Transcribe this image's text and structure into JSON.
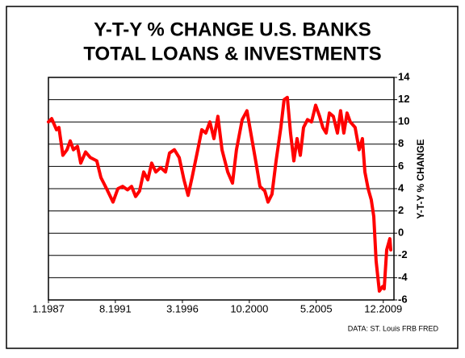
{
  "chart_data": {
    "type": "line",
    "title": [
      "Y-T-Y % CHANGE U.S. BANKS",
      "TOTAL LOANS & INVESTMENTS"
    ],
    "y_label": "Y-T-Y % CHANGE",
    "source": "DATA: ST. Louis FRB FRED",
    "xlim": [
      1987,
      2010.65
    ],
    "xticks": [
      {
        "value": 1987.0,
        "label": "1.1987"
      },
      {
        "value": 1991.58,
        "label": "8.1991"
      },
      {
        "value": 1996.17,
        "label": "3.1996"
      },
      {
        "value": 2000.75,
        "label": "10.2000"
      },
      {
        "value": 2005.33,
        "label": "5.2005"
      },
      {
        "value": 2009.92,
        "label": "12.2009"
      }
    ],
    "ylim": [
      -6,
      14
    ],
    "yticks": [
      -6,
      -4,
      -2,
      0,
      2,
      4,
      6,
      8,
      10,
      12,
      14
    ],
    "grid": true,
    "series": [
      {
        "color": "#ff0000",
        "x": [
          1987.0,
          1987.22,
          1987.55,
          1987.72,
          1987.99,
          1988.27,
          1988.49,
          1988.71,
          1988.99,
          1989.21,
          1989.54,
          1989.87,
          1990.31,
          1990.59,
          1990.98,
          1991.42,
          1991.75,
          1992.08,
          1992.41,
          1992.69,
          1992.97,
          1993.24,
          1993.52,
          1993.8,
          1994.07,
          1994.35,
          1994.68,
          1995.01,
          1995.29,
          1995.62,
          1995.95,
          1996.28,
          1996.56,
          1996.83,
          1997.22,
          1997.5,
          1997.77,
          1998.05,
          1998.33,
          1998.6,
          1998.88,
          1999.27,
          1999.6,
          1999.87,
          2000.26,
          2000.59,
          2000.92,
          2001.25,
          2001.48,
          2001.81,
          2002.03,
          2002.3,
          2002.58,
          2002.91,
          2003.13,
          2003.35,
          2003.57,
          2003.8,
          2004.02,
          2004.24,
          2004.46,
          2004.73,
          2005.01,
          2005.29,
          2005.56,
          2005.78,
          2006.01,
          2006.23,
          2006.5,
          2006.78,
          2007.0,
          2007.22,
          2007.44,
          2007.66,
          2007.99,
          2008.27,
          2008.49,
          2008.66,
          2008.88,
          2009.1,
          2009.27,
          2009.43,
          2009.65,
          2009.87,
          2009.98,
          2010.15,
          2010.37,
          2010.43
        ],
        "values": [
          10,
          10.3,
          9.3,
          9.5,
          7.0,
          7.5,
          8.3,
          7.5,
          7.8,
          6.3,
          7.3,
          6.8,
          6.5,
          5.0,
          4.0,
          2.8,
          4.0,
          4.2,
          3.9,
          4.2,
          3.3,
          3.8,
          5.5,
          4.8,
          6.3,
          5.5,
          5.9,
          5.5,
          7.2,
          7.5,
          6.8,
          4.8,
          3.4,
          5.0,
          7.5,
          9.3,
          9.0,
          10.0,
          8.5,
          10.5,
          7.5,
          5.5,
          4.5,
          7.5,
          10.2,
          11.0,
          8.5,
          6.0,
          4.2,
          3.8,
          2.8,
          3.5,
          6.5,
          9.5,
          12.0,
          12.2,
          9.0,
          6.5,
          8.5,
          7.0,
          9.5,
          10.2,
          10.0,
          11.5,
          10.5,
          9.5,
          9.0,
          10.8,
          10.5,
          9.0,
          11.0,
          9.0,
          10.8,
          10.0,
          9.5,
          7.5,
          8.5,
          5.5,
          4.0,
          3.0,
          1.5,
          -2.5,
          -5.2,
          -4.8,
          -5.0,
          -1.5,
          -0.5,
          -1.5
        ]
      }
    ]
  }
}
